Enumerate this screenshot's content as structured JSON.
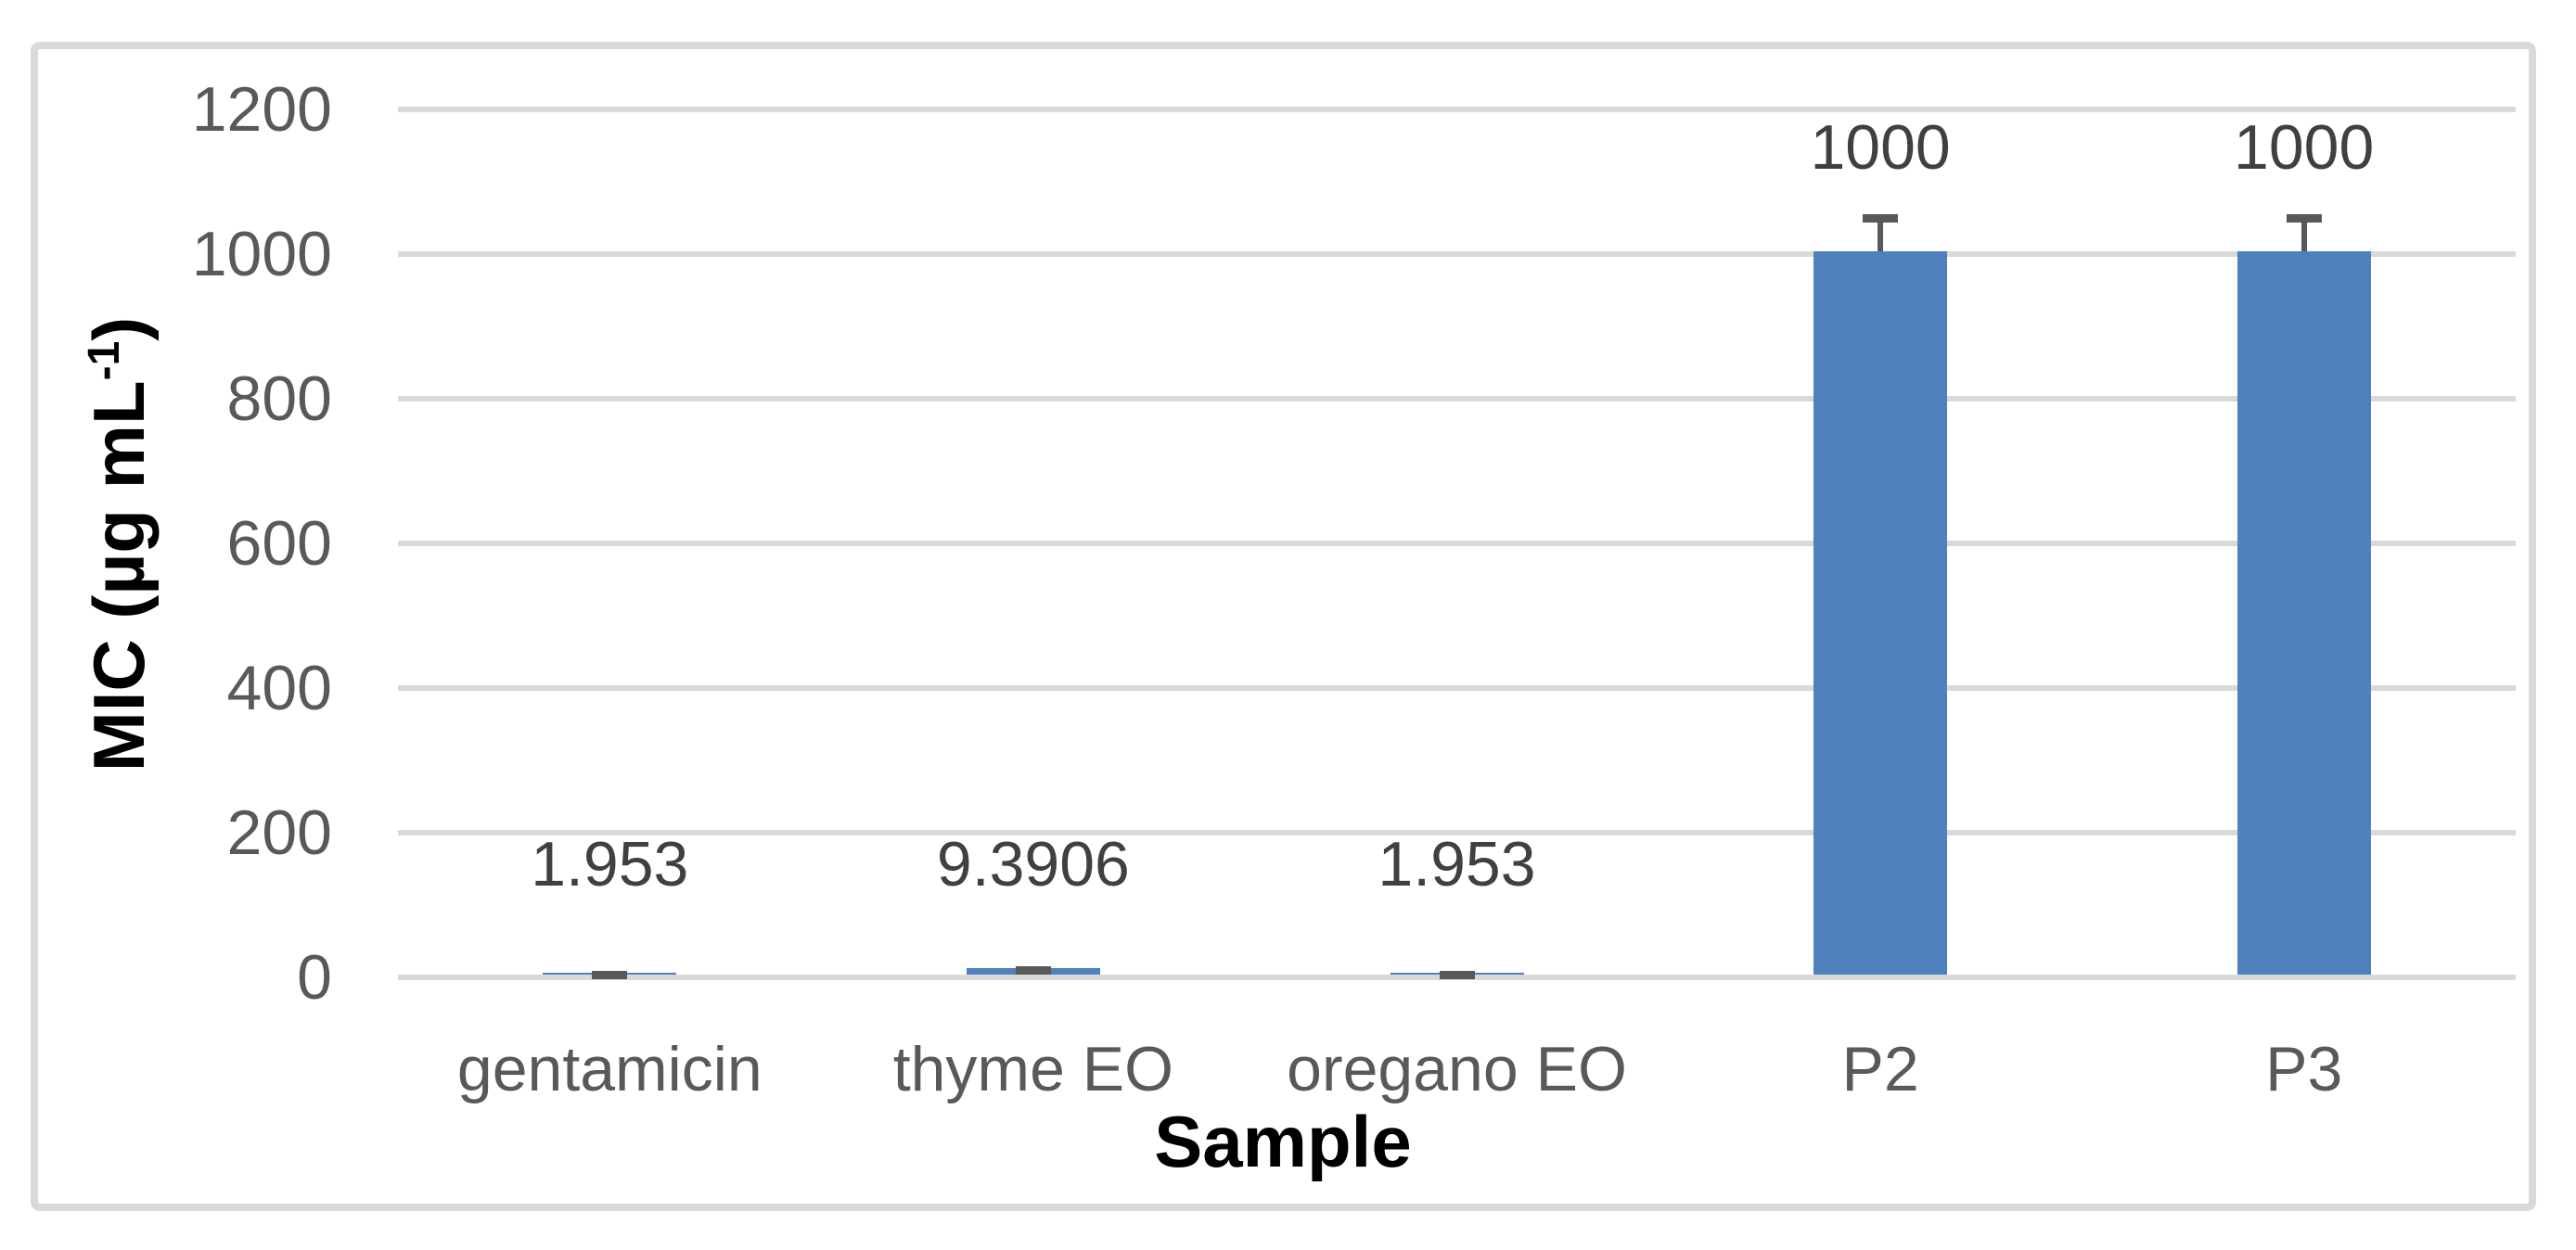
{
  "figure": {
    "background_color": "#ffffff",
    "frame_border_color": "#d9d9d9"
  },
  "chart_data": {
    "type": "bar",
    "title": "",
    "xlabel": "Sample",
    "ylabel_prefix": "MIC (µg mL",
    "ylabel_sup": "-1",
    "ylabel_suffix": ")",
    "categories": [
      "gentamicin",
      "thyme EO",
      "oregano EO",
      "P2",
      "P3"
    ],
    "values": [
      1.953,
      9.3906,
      1.953,
      1000,
      1000
    ],
    "data_labels": [
      "1.953",
      "9.3906",
      "1.953",
      "1000",
      "1000"
    ],
    "error_values": [
      2,
      1,
      2,
      50,
      50
    ],
    "ylim": [
      0,
      1200
    ],
    "ytick_step": 200,
    "yticks": [
      "0",
      "200",
      "400",
      "600",
      "800",
      "1000",
      "1200"
    ],
    "grid": "horizontal-only",
    "legend": "none",
    "bar_color": "#4f81bd",
    "error_bar_color": "#595959",
    "gridline_color": "#d9d9d9",
    "axis_text_color": "#595959",
    "data_label_color": "#404040"
  }
}
